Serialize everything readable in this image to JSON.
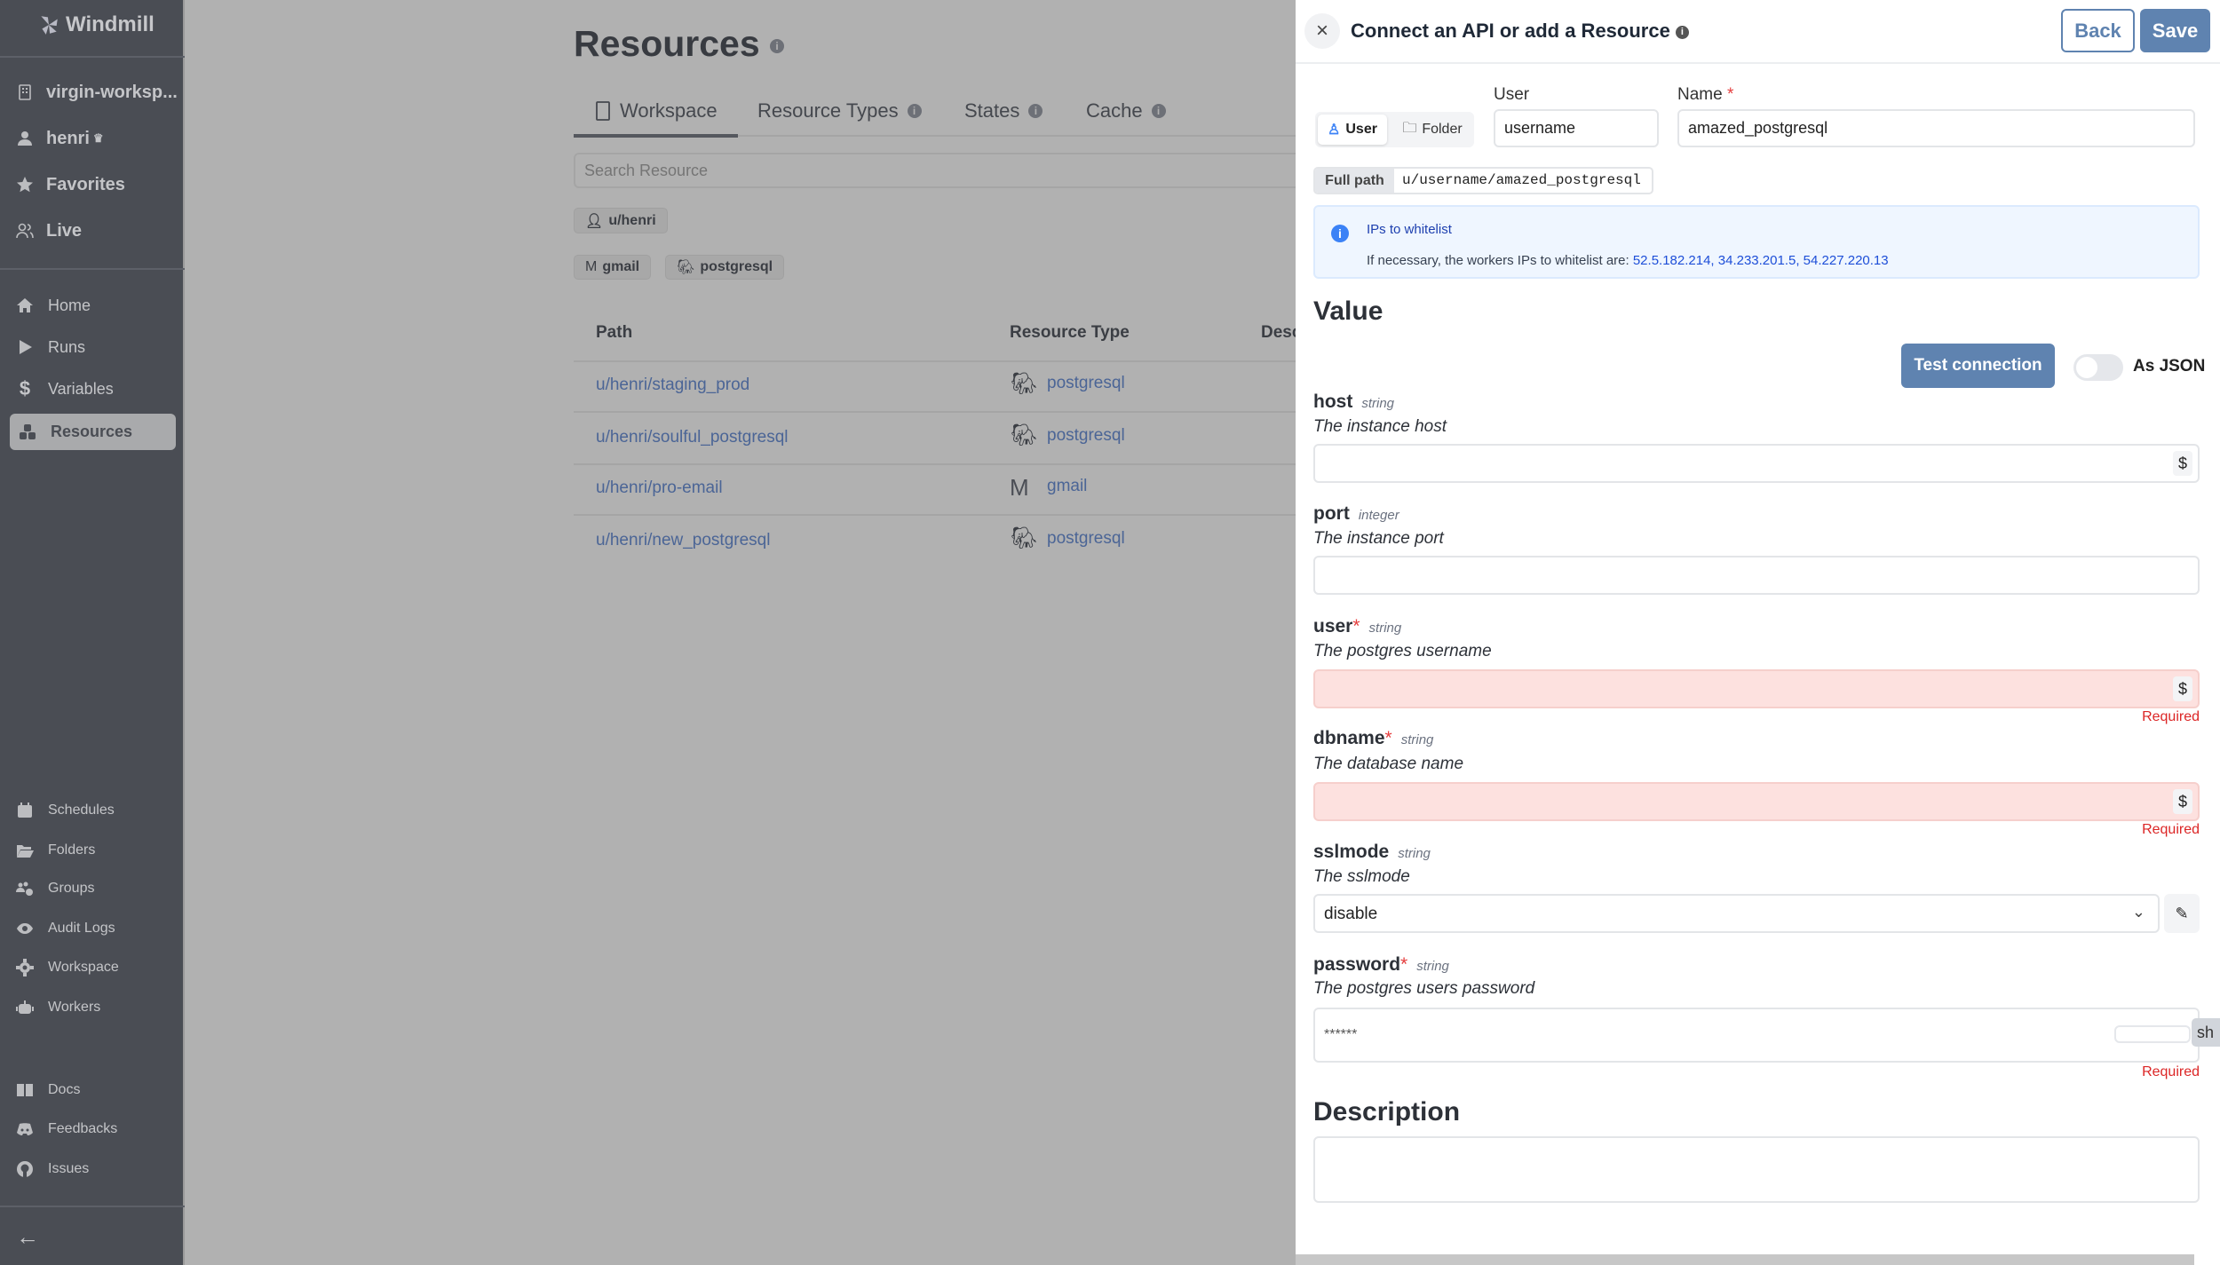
{
  "sidebar": {
    "brand": "Windmill",
    "workspace": "virgin-worksp...",
    "user": "henri",
    "top_items": [
      {
        "label": "Favorites",
        "icon": "star-icon"
      },
      {
        "label": "Live",
        "icon": "users-icon"
      }
    ],
    "main_items": [
      {
        "label": "Home",
        "icon": "home-icon"
      },
      {
        "label": "Runs",
        "icon": "play-icon"
      },
      {
        "label": "Variables",
        "icon": "dollar-icon"
      },
      {
        "label": "Resources",
        "icon": "cubes-icon",
        "active": true
      }
    ],
    "admin_items": [
      {
        "label": "Schedules",
        "icon": "calendar-icon"
      },
      {
        "label": "Folders",
        "icon": "folder-open-icon"
      },
      {
        "label": "Groups",
        "icon": "users-gear-icon"
      },
      {
        "label": "Audit Logs",
        "icon": "eye-icon"
      },
      {
        "label": "Workspace",
        "icon": "gear-icon"
      },
      {
        "label": "Workers",
        "icon": "robot-icon"
      }
    ],
    "help_items": [
      {
        "label": "Docs",
        "icon": "book-icon"
      },
      {
        "label": "Feedbacks",
        "icon": "discord-icon"
      },
      {
        "label": "Issues",
        "icon": "github-icon"
      }
    ]
  },
  "main": {
    "title": "Resources",
    "tabs": [
      "Workspace",
      "Resource Types",
      "States",
      "Cache"
    ],
    "search_placeholder": "Search Resource",
    "owner_filter": "u/henri",
    "type_filters": [
      "gmail",
      "postgresql"
    ],
    "columns": [
      "Path",
      "Resource Type",
      "Desc"
    ],
    "rows": [
      {
        "path": "u/henri/staging_prod",
        "type": "postgresql"
      },
      {
        "path": "u/henri/soulful_postgresql",
        "type": "postgresql"
      },
      {
        "path": "u/henri/pro-email",
        "type": "gmail"
      },
      {
        "path": "u/henri/new_postgresql",
        "type": "postgresql"
      }
    ]
  },
  "panel": {
    "title": "Connect an API or add a Resource",
    "back": "Back",
    "save": "Save",
    "owner_toggle": [
      "User",
      "Folder"
    ],
    "user_label": "User",
    "user_value": "username",
    "name_label": "Name",
    "name_value": "amazed_postgresql",
    "full_path_label": "Full path",
    "full_path": "u/username/amazed_postgresql",
    "alert_title": "IPs to whitelist",
    "alert_text": "If necessary, the workers IPs to whitelist are: ",
    "alert_ips": "52.5.182.214, 34.233.201.5, 54.227.220.13",
    "value_heading": "Value",
    "test_connection": "Test connection",
    "as_json": "As JSON",
    "as_json_on": false,
    "required_text": "Required",
    "fields": {
      "host": {
        "name": "host",
        "type": "string",
        "desc": "The instance host",
        "value": ""
      },
      "port": {
        "name": "port",
        "type": "integer",
        "desc": "The instance port",
        "value": ""
      },
      "user": {
        "name": "user",
        "type": "string",
        "desc": "The postgres username",
        "value": ""
      },
      "dbname": {
        "name": "dbname",
        "type": "string",
        "desc": "The database name",
        "value": ""
      },
      "sslmode": {
        "name": "sslmode",
        "type": "string",
        "desc": "The sslmode",
        "value": "disable"
      },
      "password": {
        "name": "password",
        "type": "string",
        "desc": "The postgres users password",
        "value": "******",
        "show": "sh"
      }
    },
    "description_heading": "Description",
    "description_value": ""
  },
  "colors": {
    "accent": "#5f83b0",
    "sidebar": "#4a4d54",
    "error_bg": "#fde1df",
    "error_text": "#dc2626",
    "link": "#2563eb"
  }
}
